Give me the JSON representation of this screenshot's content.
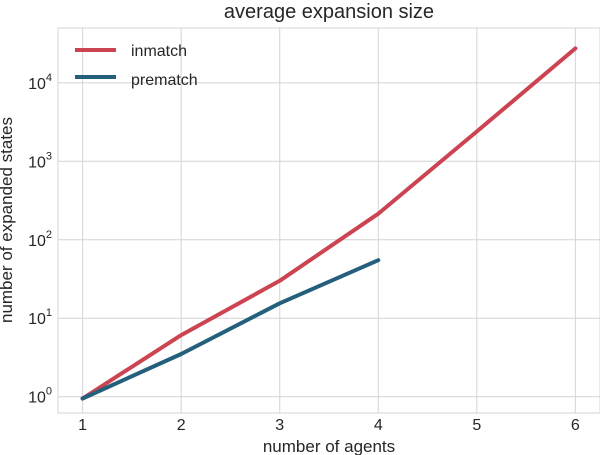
{
  "chart_data": {
    "type": "line",
    "title": "average expansion size",
    "xlabel": "number of agents",
    "ylabel": "number of expanded states",
    "yscale": "log",
    "xlim": [
      0.75,
      6.25
    ],
    "ylim": [
      0.62,
      50000
    ],
    "x_ticks": [
      1,
      2,
      3,
      4,
      5,
      6
    ],
    "y_ticks": [
      {
        "value": 1,
        "base": "10",
        "exp": "0"
      },
      {
        "value": 10,
        "base": "10",
        "exp": "1"
      },
      {
        "value": 100,
        "base": "10",
        "exp": "2"
      },
      {
        "value": 1000,
        "base": "10",
        "exp": "3"
      },
      {
        "value": 10000,
        "base": "10",
        "exp": "4"
      }
    ],
    "grid": true,
    "legend_position": "top-left",
    "series": [
      {
        "name": "inmatch",
        "color": "#cc4452",
        "x": [
          1,
          2,
          3,
          4,
          5,
          6
        ],
        "y": [
          0.95,
          6.1,
          30,
          215,
          2400,
          27500
        ]
      },
      {
        "name": "prematch",
        "color": "#245f7c",
        "x": [
          1,
          2,
          3,
          4
        ],
        "y": [
          0.95,
          3.5,
          15.5,
          55
        ]
      }
    ]
  }
}
